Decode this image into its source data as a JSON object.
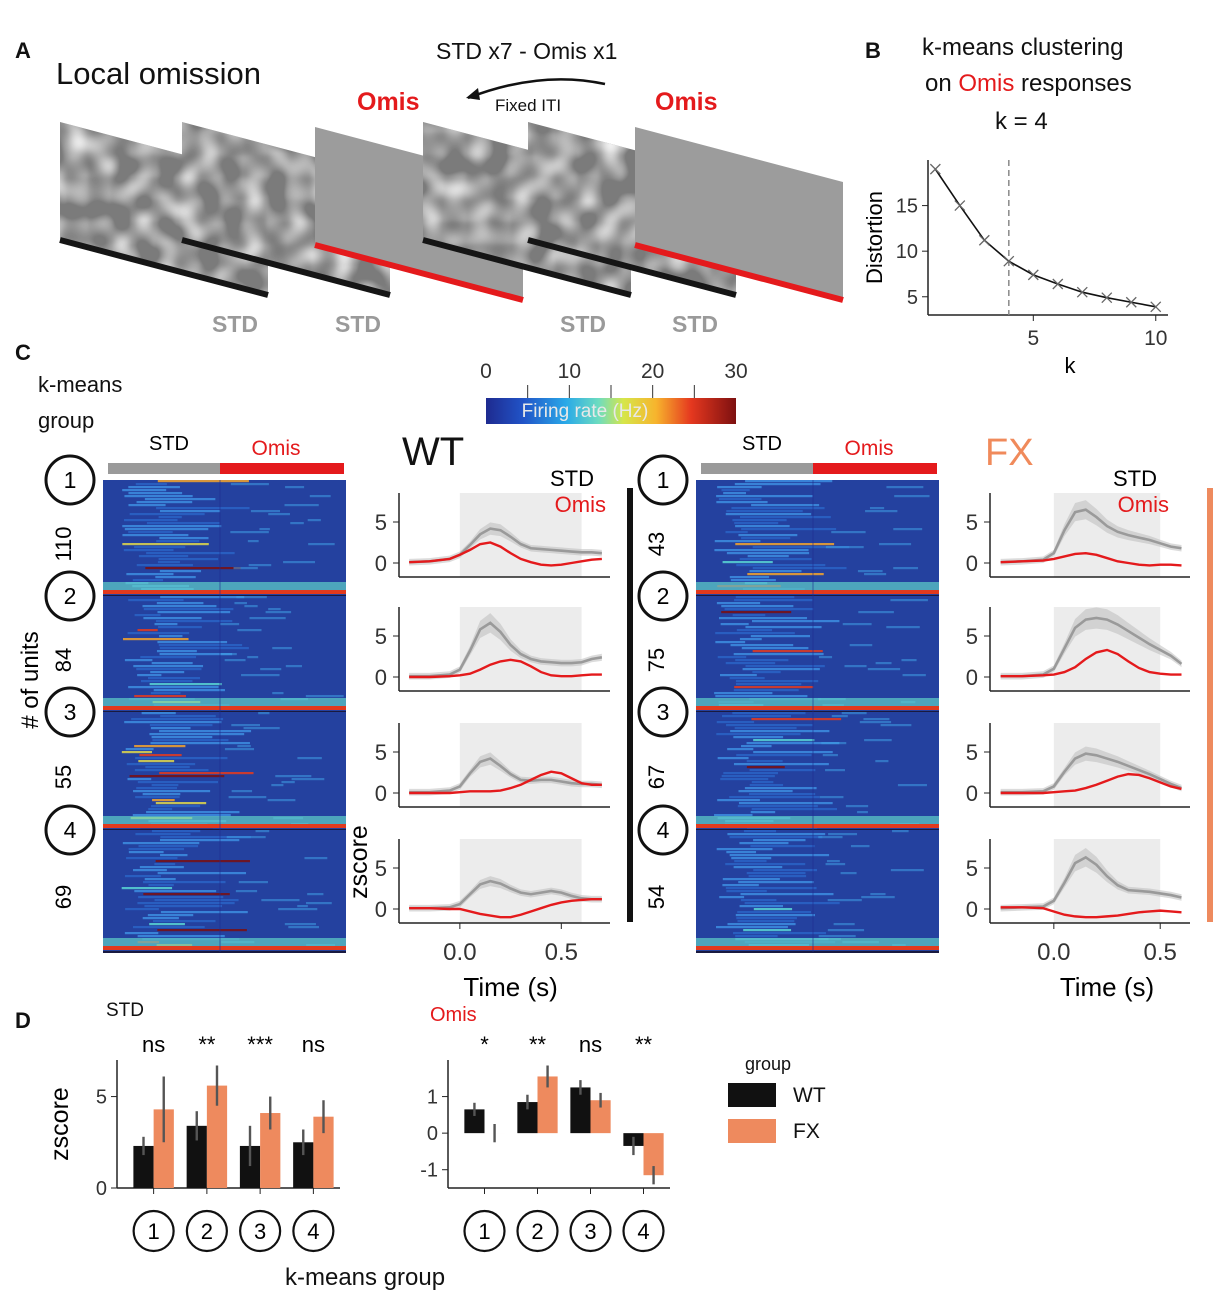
{
  "panels": {
    "a": "A",
    "b": "B",
    "c": "C",
    "d": "D"
  },
  "colors": {
    "std": "#9a9a9a",
    "omis": "#e41a1c",
    "wt": "#111111",
    "fx": "#ee8a5e",
    "shade": "#ececec"
  },
  "panel_a": {
    "title": "Local omission",
    "sequence": "STD x7 - Omis x1",
    "iti": "Fixed ITI",
    "omis_label": "Omis",
    "std_label": "STD"
  },
  "panel_b": {
    "title_line1": "k-means clustering",
    "title_line2_pre": "on ",
    "title_line2_omis": "Omis",
    "title_line2_post": " responses",
    "k_label": "k = 4"
  },
  "panel_c": {
    "group_label_line1": "k-means",
    "group_label_line2": "group",
    "units_label": "# of units",
    "std_bar": "STD",
    "omis_bar": "Omis",
    "wt_title": "WT",
    "fx_title": "FX",
    "legend_std": "STD",
    "legend_omis": "Omis",
    "colorbar_label": "Firing rate (Hz)",
    "colorbar_ticks": [
      "0",
      "10",
      "20",
      "30"
    ],
    "cluster_ids": [
      "1",
      "2",
      "3",
      "4"
    ],
    "wt_counts": [
      "110",
      "84",
      "55",
      "69"
    ],
    "fx_counts": [
      "43",
      "75",
      "67",
      "54"
    ]
  },
  "panel_d": {
    "std_title": "STD",
    "omis_title": "Omis",
    "legend_title": "group",
    "legend_wt": "WT",
    "legend_fx": "FX",
    "xlabel": "k-means group",
    "ylabel": "zscore"
  },
  "chart_data": [
    {
      "id": "distortion",
      "type": "line",
      "xlabel": "k",
      "ylabel": "Distortion",
      "x": [
        1,
        2,
        3,
        4,
        5,
        6,
        7,
        8,
        9,
        10
      ],
      "values": [
        19,
        15,
        11.2,
        8.9,
        7.4,
        6.4,
        5.5,
        4.9,
        4.4,
        3.9
      ],
      "xticks": [
        "5",
        "10"
      ],
      "yticks": [
        "5",
        "10",
        "15"
      ],
      "xlim": [
        0.7,
        10.5
      ],
      "ylim": [
        3,
        20
      ],
      "vline_at": 4
    },
    {
      "id": "wt_psth",
      "type": "line",
      "group": "WT",
      "xlabel": "Time (s)",
      "ylabel": "zscore",
      "x": [
        -0.25,
        -0.15,
        -0.05,
        0.0,
        0.05,
        0.1,
        0.15,
        0.2,
        0.25,
        0.3,
        0.35,
        0.4,
        0.45,
        0.5,
        0.55,
        0.6,
        0.65,
        0.7
      ],
      "xticks": [
        "0.0",
        "0.5"
      ],
      "yticks": [
        "0",
        "5"
      ],
      "stim_window": [
        0,
        0.6
      ],
      "clusters": [
        {
          "cluster": "1",
          "std": [
            0.1,
            0.2,
            0.5,
            1.0,
            2.2,
            3.5,
            4.2,
            4.0,
            3.2,
            2.3,
            1.8,
            1.7,
            1.6,
            1.5,
            1.4,
            1.3,
            1.3,
            1.2
          ],
          "omis": [
            0.1,
            0.2,
            0.5,
            1.0,
            1.6,
            2.3,
            2.5,
            2.0,
            1.2,
            0.5,
            0.1,
            -0.2,
            -0.3,
            -0.2,
            0.0,
            0.2,
            0.4,
            0.5
          ]
        },
        {
          "cluster": "2",
          "std": [
            0.1,
            0.1,
            0.3,
            0.9,
            3.2,
            5.8,
            6.6,
            5.5,
            3.9,
            2.8,
            2.2,
            1.9,
            1.8,
            1.7,
            1.7,
            1.8,
            2.2,
            2.4
          ],
          "omis": [
            0.0,
            0.0,
            0.1,
            0.2,
            0.4,
            0.9,
            1.5,
            1.9,
            2.1,
            1.9,
            1.3,
            0.6,
            0.2,
            0.1,
            0.1,
            0.2,
            0.3,
            0.3
          ]
        },
        {
          "cluster": "3",
          "std": [
            0.1,
            0.1,
            0.3,
            0.8,
            2.4,
            3.8,
            4.2,
            3.3,
            2.3,
            1.6,
            1.5,
            1.6,
            1.6,
            1.4,
            1.2,
            1.1,
            1.1,
            1.0
          ],
          "omis": [
            0.0,
            0.0,
            0.0,
            0.1,
            0.2,
            0.2,
            0.2,
            0.3,
            0.6,
            1.0,
            1.6,
            2.2,
            2.6,
            2.4,
            1.8,
            1.2,
            1.0,
            1.0
          ]
        },
        {
          "cluster": "4",
          "std": [
            0.1,
            0.1,
            0.2,
            0.6,
            1.8,
            3.0,
            3.4,
            3.1,
            2.5,
            2.0,
            1.8,
            2.0,
            2.2,
            2.0,
            1.6,
            1.3,
            1.2,
            1.2
          ],
          "omis": [
            0.1,
            0.1,
            0.0,
            0.0,
            -0.3,
            -0.6,
            -0.8,
            -1.0,
            -1.0,
            -0.7,
            -0.3,
            0.1,
            0.5,
            0.8,
            1.0,
            1.1,
            1.2,
            1.2
          ]
        }
      ]
    },
    {
      "id": "fx_psth",
      "type": "line",
      "group": "FX",
      "xlabel": "Time (s)",
      "ylabel": "zscore",
      "x": [
        -0.25,
        -0.15,
        -0.05,
        0.0,
        0.05,
        0.1,
        0.15,
        0.2,
        0.25,
        0.3,
        0.35,
        0.4,
        0.45,
        0.5,
        0.55,
        0.6
      ],
      "xticks": [
        "0.0",
        "0.5"
      ],
      "yticks": [
        "0",
        "5"
      ],
      "stim_window": [
        0,
        0.5
      ],
      "clusters": [
        {
          "cluster": "1",
          "std": [
            0.1,
            0.2,
            0.4,
            1.2,
            4.0,
            6.2,
            6.5,
            5.6,
            4.5,
            3.8,
            3.4,
            3.1,
            2.8,
            2.4,
            2.0,
            1.8
          ],
          "omis": [
            0.1,
            0.2,
            0.3,
            0.5,
            0.8,
            1.1,
            1.2,
            1.0,
            0.6,
            0.2,
            0.0,
            -0.2,
            -0.3,
            -0.2,
            -0.2,
            -0.3
          ]
        },
        {
          "cluster": "2",
          "std": [
            0.1,
            0.1,
            0.3,
            1.0,
            3.5,
            6.0,
            7.0,
            7.2,
            7.0,
            6.4,
            5.6,
            4.8,
            4.0,
            3.3,
            2.6,
            1.6
          ],
          "omis": [
            0.1,
            0.1,
            0.2,
            0.3,
            0.6,
            1.2,
            2.2,
            3.0,
            3.3,
            2.8,
            1.9,
            1.1,
            0.6,
            0.4,
            0.3,
            0.3
          ]
        },
        {
          "cluster": "3",
          "std": [
            0.1,
            0.1,
            0.2,
            0.8,
            2.6,
            4.2,
            4.8,
            4.6,
            4.2,
            3.8,
            3.3,
            2.8,
            2.3,
            1.7,
            1.1,
            0.6
          ],
          "omis": [
            0.0,
            0.0,
            0.0,
            0.1,
            0.2,
            0.3,
            0.6,
            1.0,
            1.5,
            2.0,
            2.3,
            2.2,
            1.8,
            1.3,
            0.8,
            0.5
          ]
        },
        {
          "cluster": "4",
          "std": [
            0.1,
            0.2,
            0.3,
            1.0,
            3.2,
            5.6,
            6.3,
            5.4,
            4.0,
            2.9,
            2.3,
            2.2,
            2.1,
            1.9,
            1.7,
            1.4
          ],
          "omis": [
            0.2,
            0.2,
            0.1,
            -0.3,
            -0.7,
            -0.9,
            -1.0,
            -1.0,
            -0.9,
            -0.8,
            -0.6,
            -0.4,
            -0.3,
            -0.2,
            -0.3,
            -0.4
          ]
        }
      ]
    },
    {
      "id": "std_bars",
      "type": "bar",
      "title": "STD",
      "xlabel": "k-means group",
      "ylabel": "zscore",
      "categories": [
        "1",
        "2",
        "3",
        "4"
      ],
      "series": [
        {
          "name": "WT",
          "values": [
            2.3,
            3.4,
            2.3,
            2.5
          ],
          "err": [
            0.5,
            0.8,
            1.1,
            0.7
          ]
        },
        {
          "name": "FX",
          "values": [
            4.3,
            5.6,
            4.1,
            3.9
          ],
          "err": [
            1.8,
            1.1,
            0.9,
            0.9
          ]
        }
      ],
      "significance": [
        "ns",
        "**",
        "***",
        "ns"
      ],
      "yticks": [
        "0",
        "5"
      ],
      "ylim": [
        0,
        7
      ]
    },
    {
      "id": "omis_bars",
      "type": "bar",
      "title": "Omis",
      "xlabel": "k-means group",
      "ylabel": "zscore",
      "categories": [
        "1",
        "2",
        "3",
        "4"
      ],
      "series": [
        {
          "name": "WT",
          "values": [
            0.65,
            0.85,
            1.25,
            -0.35
          ],
          "err": [
            0.18,
            0.2,
            0.2,
            0.25
          ]
        },
        {
          "name": "FX",
          "values": [
            0.0,
            1.55,
            0.9,
            -1.15
          ],
          "err": [
            0.25,
            0.3,
            0.2,
            0.25
          ]
        }
      ],
      "significance": [
        "*",
        "**",
        "ns",
        "**"
      ],
      "yticks": [
        "-1",
        "0",
        "1"
      ],
      "ylim": [
        -1.5,
        2
      ]
    }
  ]
}
